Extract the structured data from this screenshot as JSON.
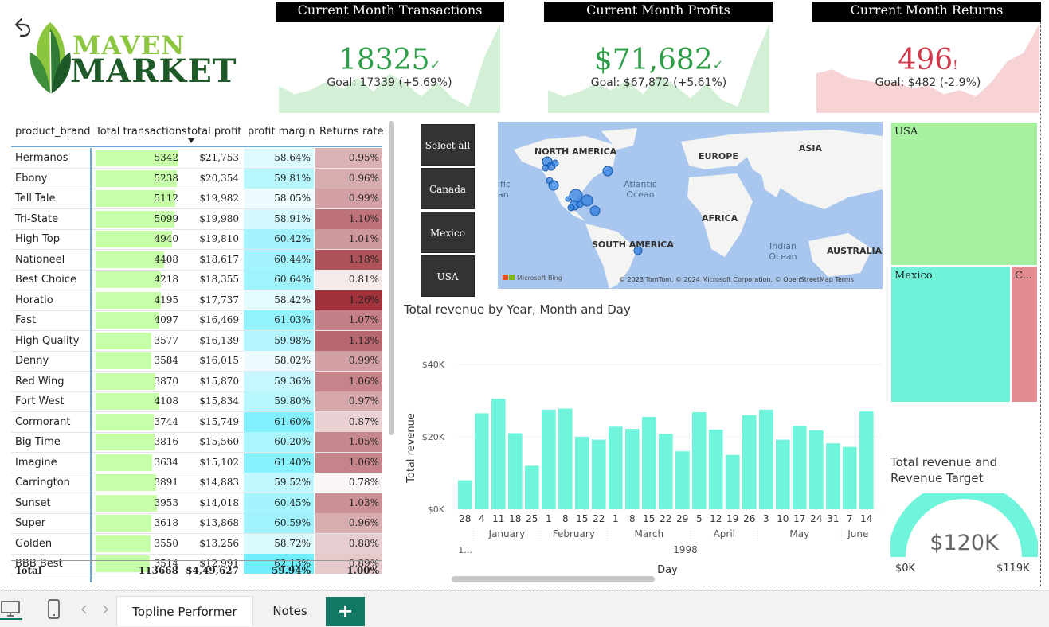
{
  "kpis": {
    "transactions": {
      "title": "Current Month Transactions",
      "value": "18325",
      "indicator": "✓",
      "goal": "Goal: 17339 (+5.69%)",
      "color": "#2e9e48",
      "spark": [
        0.25,
        0.15,
        0.2,
        0.3,
        0.22,
        0.35,
        0.18,
        0.4,
        0.28,
        0.12,
        0.3,
        0.1,
        0.0,
        0.6,
        1.0
      ]
    },
    "profits": {
      "title": "Current Month Profits",
      "value": "$71,682",
      "indicator": "✓",
      "goal": "Goal: $67,872 (+5.61%)",
      "color": "#2e9e48",
      "spark": [
        0.2,
        0.12,
        0.18,
        0.28,
        0.2,
        0.32,
        0.15,
        0.38,
        0.26,
        0.1,
        0.28,
        0.08,
        0.0,
        0.55,
        1.0
      ]
    },
    "returns": {
      "title": "Current Month Returns",
      "value": "496",
      "indicator": "!",
      "goal": "Goal: $482 (-2.9%)",
      "color": "#d1394b",
      "spark": [
        0.4,
        0.45,
        0.35,
        0.32,
        0.28,
        0.3,
        0.22,
        0.26,
        0.15,
        0.2,
        0.12,
        0.3,
        0.55,
        0.65,
        1.0
      ]
    }
  },
  "logo": {
    "top": "MAVEN",
    "bottom": "MARKET"
  },
  "table": {
    "headers": [
      "product_brand",
      "Total transactions",
      "total profit",
      "profit margin",
      "Returns rate"
    ],
    "rows": [
      {
        "brand": "Hermanos",
        "tx": 5342,
        "profit": "$21,753",
        "margin": "58.64%",
        "ret": "0.95%"
      },
      {
        "brand": "Ebony",
        "tx": 5238,
        "profit": "$20,354",
        "margin": "59.81%",
        "ret": "0.96%"
      },
      {
        "brand": "Tell Tale",
        "tx": 5112,
        "profit": "$19,982",
        "margin": "58.05%",
        "ret": "0.99%"
      },
      {
        "brand": "Tri-State",
        "tx": 5099,
        "profit": "$19,980",
        "margin": "58.91%",
        "ret": "1.10%"
      },
      {
        "brand": "High Top",
        "tx": 4940,
        "profit": "$19,810",
        "margin": "60.42%",
        "ret": "1.01%"
      },
      {
        "brand": "Nationeel",
        "tx": 4408,
        "profit": "$18,617",
        "margin": "60.44%",
        "ret": "1.18%"
      },
      {
        "brand": "Best Choice",
        "tx": 4218,
        "profit": "$18,355",
        "margin": "60.64%",
        "ret": "0.81%"
      },
      {
        "brand": "Horatio",
        "tx": 4195,
        "profit": "$17,737",
        "margin": "58.42%",
        "ret": "1.26%"
      },
      {
        "brand": "Fast",
        "tx": 4097,
        "profit": "$16,469",
        "margin": "61.03%",
        "ret": "1.07%"
      },
      {
        "brand": "High Quality",
        "tx": 3577,
        "profit": "$16,139",
        "margin": "59.98%",
        "ret": "1.13%"
      },
      {
        "brand": "Denny",
        "tx": 3584,
        "profit": "$16,015",
        "margin": "58.02%",
        "ret": "0.99%"
      },
      {
        "brand": "Red Wing",
        "tx": 3870,
        "profit": "$15,870",
        "margin": "59.36%",
        "ret": "1.06%"
      },
      {
        "brand": "Fort West",
        "tx": 4108,
        "profit": "$15,834",
        "margin": "59.80%",
        "ret": "0.97%"
      },
      {
        "brand": "Cormorant",
        "tx": 3744,
        "profit": "$15,749",
        "margin": "61.60%",
        "ret": "0.87%"
      },
      {
        "brand": "Big Time",
        "tx": 3816,
        "profit": "$15,560",
        "margin": "60.20%",
        "ret": "1.05%"
      },
      {
        "brand": "Imagine",
        "tx": 3634,
        "profit": "$15,102",
        "margin": "61.40%",
        "ret": "1.06%"
      },
      {
        "brand": "Carrington",
        "tx": 3891,
        "profit": "$14,883",
        "margin": "59.52%",
        "ret": "0.78%"
      },
      {
        "brand": "Sunset",
        "tx": 3953,
        "profit": "$14,018",
        "margin": "60.45%",
        "ret": "1.03%"
      },
      {
        "brand": "Super",
        "tx": 3618,
        "profit": "$13,868",
        "margin": "60.59%",
        "ret": "0.96%"
      },
      {
        "brand": "Golden",
        "tx": 3550,
        "profit": "$13,256",
        "margin": "58.72%",
        "ret": "0.88%"
      },
      {
        "brand": "BBB Best",
        "tx": 3514,
        "profit": "$12,991",
        "margin": "62.13%",
        "ret": "0.89%"
      }
    ],
    "total": {
      "label": "Total",
      "tx": "113668",
      "profit": "$4,49,627",
      "margin": "59.94%",
      "ret": "1.00%"
    }
  },
  "slicer": {
    "items": [
      "Select all",
      "Canada",
      "Mexico",
      "USA"
    ]
  },
  "map": {
    "continents": [
      "NORTH AMERICA",
      "EUROPE",
      "ASIA",
      "AFRICA",
      "SOUTH AMERICA",
      "AUSTRALIA"
    ],
    "oceans": [
      "Atlantic Ocean",
      "Indian Ocean",
      "ific an"
    ],
    "attribution": "© 2023 TomTom, © 2024 Microsoft Corporation, © OpenStreetMap  Terms",
    "brand": "Microsoft Bing"
  },
  "chart_data": {
    "type": "bar",
    "title": "Total revenue by Year, Month and Day",
    "xlabel": "Day",
    "ylabel": "Total revenue",
    "ylim": [
      0,
      40000
    ],
    "y_ticks": [
      "$0K",
      "$20K",
      "$40K"
    ],
    "categories": [
      "28",
      "4",
      "11",
      "18",
      "25",
      "1",
      "8",
      "15",
      "22",
      "1",
      "8",
      "15",
      "22",
      "29",
      "5",
      "12",
      "19",
      "26",
      "3",
      "10",
      "17",
      "24",
      "31",
      "7",
      "14"
    ],
    "values": [
      8000,
      26500,
      30500,
      21000,
      12000,
      27500,
      27800,
      20000,
      19200,
      22800,
      22200,
      25500,
      20800,
      16000,
      26800,
      22000,
      15000,
      26000,
      27500,
      19200,
      23000,
      21800,
      18200,
      17200,
      27000
    ],
    "months": [
      "January",
      "February",
      "March",
      "April",
      "May",
      "June"
    ],
    "year": "1998",
    "year_prefix": "1...",
    "color": "#6ff5dc"
  },
  "treemap": {
    "items": [
      {
        "label": "USA",
        "color": "#a6f0a0"
      },
      {
        "label": "Mexico",
        "color": "#6ff2d8"
      },
      {
        "label": "C...",
        "color": "#e28c92"
      }
    ]
  },
  "gauge": {
    "title": "Total revenue and Revenue Target",
    "value": "$120K",
    "min": "$0K",
    "max": "$119K",
    "fill": 1.0,
    "color": "#6ff5dc"
  },
  "tabs": {
    "active": "Topline Performer",
    "other": "Notes",
    "add": "+"
  }
}
